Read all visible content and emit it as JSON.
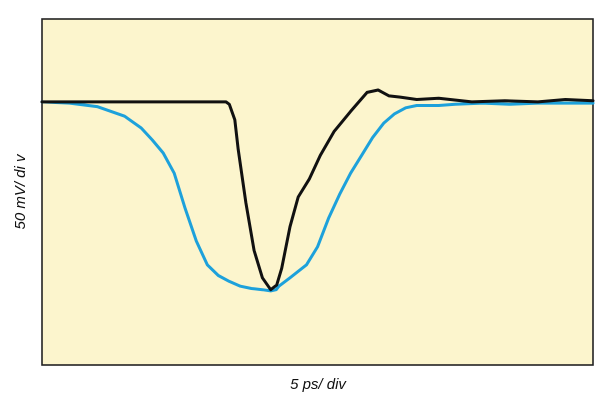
{
  "chart_data": {
    "type": "line",
    "xlabel": "5 ps/ div",
    "ylabel": "50 mV/ di v",
    "grid": false,
    "legend": "none",
    "xlim": [
      0,
      100
    ],
    "ylim": [
      -170,
      10
    ],
    "colors": {
      "background": "#fcf5cd",
      "frame": "#222222"
    },
    "series": [
      {
        "color": "#111111",
        "x": [
          0,
          10,
          20,
          26,
          30,
          32.6,
          33.4,
          34.0,
          35.0,
          35.6,
          37.0,
          38.5,
          40.0,
          41.5,
          42.6,
          43.5,
          45.0,
          46.5,
          48.5,
          50.5,
          53.0,
          56.0,
          59.0,
          61.0,
          63.0,
          65.0,
          68.0,
          72.0,
          78.0,
          84.0,
          90.0,
          95.0,
          100.0
        ],
        "y": [
          0,
          0,
          0,
          0,
          0,
          0,
          0,
          -2,
          -15,
          -40,
          -85,
          -125,
          -148,
          -158,
          -154,
          -140,
          -105,
          -80,
          -65,
          -45,
          -25,
          -8,
          8,
          10,
          5,
          4,
          2,
          3,
          0,
          1,
          0,
          2,
          1
        ]
      },
      {
        "color": "#1da1db",
        "x": [
          0,
          5,
          10,
          15,
          18,
          20,
          22,
          24,
          26,
          28,
          30,
          32,
          34,
          36,
          38,
          40,
          41.5,
          42.5,
          43,
          45,
          48,
          50,
          52,
          54,
          56,
          58,
          60,
          62,
          64,
          66,
          68,
          70,
          72,
          75,
          80,
          85,
          90,
          95,
          100
        ],
        "y": [
          0,
          -1,
          -4,
          -12,
          -22,
          -32,
          -43,
          -60,
          -90,
          -117,
          -137,
          -146,
          -151,
          -155,
          -157,
          -158,
          -159,
          -158,
          -155,
          -148,
          -137,
          -122,
          -98,
          -78,
          -60,
          -45,
          -30,
          -18,
          -10,
          -5,
          -3,
          -3,
          -3,
          -2,
          -1,
          -2,
          -1,
          -1,
          -1
        ]
      }
    ]
  }
}
